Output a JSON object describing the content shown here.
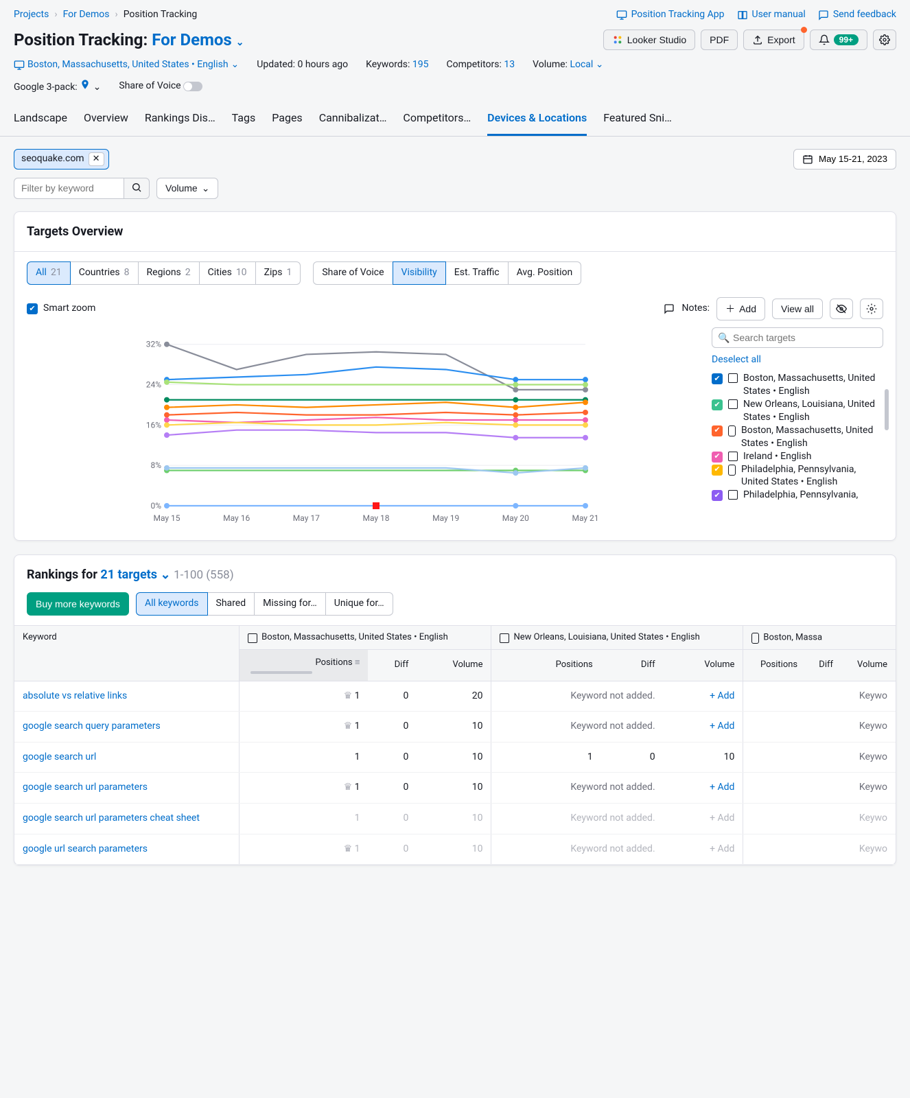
{
  "breadcrumbs": {
    "items": [
      "Projects",
      "For Demos",
      "Position Tracking"
    ]
  },
  "toplinks": {
    "app": "Position Tracking App",
    "manual": "User manual",
    "feedback": "Send feedback"
  },
  "title": {
    "prefix": "Position Tracking:",
    "project": "For Demos"
  },
  "actions": {
    "looker": "Looker Studio",
    "pdf": "PDF",
    "export": "Export",
    "notif_badge": "99+"
  },
  "meta": {
    "location": "Boston, Massachusetts, United States • English",
    "updated_label": "Updated:",
    "updated_val": "0 hours ago",
    "keywords_label": "Keywords:",
    "keywords_val": "195",
    "competitors_label": "Competitors:",
    "competitors_val": "13",
    "volume_label": "Volume:",
    "volume_val": "Local",
    "g3pack": "Google 3-pack:",
    "sov": "Share of Voice"
  },
  "tabs": [
    "Landscape",
    "Overview",
    "Rankings Dis…",
    "Tags",
    "Pages",
    "Cannibalizat…",
    "Competitors…",
    "Devices & Locations",
    "Featured Sni…"
  ],
  "active_tab_index": 7,
  "domain_chip": "seoquake.com",
  "date_range": "May 15-21, 2023",
  "filter": {
    "keyword_placeholder": "Filter by keyword",
    "volume": "Volume"
  },
  "card": {
    "title": "Targets Overview",
    "scopes": [
      {
        "label": "All",
        "count": "21",
        "active": true
      },
      {
        "label": "Countries",
        "count": "8"
      },
      {
        "label": "Regions",
        "count": "2"
      },
      {
        "label": "Cities",
        "count": "10"
      },
      {
        "label": "Zips",
        "count": "1"
      }
    ],
    "metrics": [
      {
        "label": "Share of Voice"
      },
      {
        "label": "Visibility",
        "active": true
      },
      {
        "label": "Est. Traffic"
      },
      {
        "label": "Avg. Position"
      }
    ],
    "smart_zoom": "Smart zoom",
    "notes_label": "Notes:",
    "notes_add": "Add",
    "notes_viewall": "View all",
    "chart": {
      "x_labels": [
        "May 15",
        "May 16",
        "May 17",
        "May 18",
        "May 19",
        "May 20",
        "May 21"
      ],
      "y_labels": [
        "0%",
        "8%",
        "16%",
        "24%",
        "32%"
      ],
      "y_max": 34,
      "series": [
        {
          "color": "#898d9a",
          "values": [
            32,
            27,
            30,
            30.5,
            30,
            23,
            23
          ]
        },
        {
          "color": "#2b8ef0",
          "values": [
            25,
            25.5,
            26,
            27.5,
            27,
            25,
            25
          ]
        },
        {
          "color": "#008a5e",
          "values": [
            21,
            21,
            21,
            21,
            21,
            21,
            21
          ]
        },
        {
          "color": "#ff8a00",
          "values": [
            19.5,
            20,
            19.5,
            20,
            20.5,
            19.5,
            20.5
          ]
        },
        {
          "color": "#a9e27a",
          "values": [
            24.5,
            24,
            24,
            24,
            24,
            24,
            24
          ]
        },
        {
          "color": "#ff642d",
          "values": [
            18,
            18.5,
            18,
            18,
            18.5,
            18,
            18.5
          ]
        },
        {
          "color": "#f05eb1",
          "values": [
            17,
            16.5,
            17,
            17.5,
            17,
            17,
            17
          ]
        },
        {
          "color": "#ffd54a",
          "values": [
            16,
            16.5,
            16,
            16,
            16.5,
            16,
            16
          ]
        },
        {
          "color": "#b57ef5",
          "values": [
            14,
            15,
            15,
            14.5,
            14.5,
            13.5,
            13.5
          ]
        },
        {
          "color": "#6fcf6f",
          "values": [
            7,
            7,
            7,
            7,
            7,
            7,
            7
          ]
        },
        {
          "color": "#9cc7f0",
          "values": [
            7.5,
            7.5,
            7.5,
            7.5,
            7.5,
            6.5,
            7.5
          ]
        },
        {
          "color": "#7db6ff",
          "values": [
            0,
            0,
            0,
            0,
            0,
            0,
            0
          ]
        }
      ],
      "note_marker_x_index": 3,
      "note_marker_color": "#ff1717"
    },
    "legend": {
      "search_placeholder": "Search targets",
      "deselect": "Deselect all",
      "items": [
        {
          "check": "#006dca",
          "device": "desktop",
          "label": "Boston, Massachusetts, United States • English"
        },
        {
          "check": "#3ac28f",
          "device": "desktop",
          "label": "New Orleans, Louisiana, United States • English"
        },
        {
          "check": "#ff642d",
          "device": "mobile",
          "label": "Boston, Massachusetts, United States • English"
        },
        {
          "check": "#f05eb1",
          "device": "desktop",
          "label": "Ireland • English"
        },
        {
          "check": "#ffb800",
          "device": "mobile",
          "label": "Philadelphia, Pennsylvania, United States • English"
        },
        {
          "check": "#8c5cf2",
          "device": "desktop",
          "label": "Philadelphia, Pennsylvania,"
        }
      ]
    }
  },
  "rankings": {
    "prefix": "Rankings for",
    "targets": "21 targets",
    "range": "1-100 (558)",
    "buy": "Buy more keywords",
    "seg": [
      "All keywords",
      "Shared",
      "Missing for…",
      "Unique for…"
    ],
    "headers": {
      "keyword": "Keyword",
      "group1": "Boston, Massachusetts, United States • English",
      "group2": "New Orleans, Louisiana, United States • English",
      "group3": "Boston, Massa",
      "group1_device": "desktop",
      "group2_device": "desktop",
      "group3_device": "mobile",
      "sub": [
        "Positions",
        "Diff",
        "Volume"
      ]
    },
    "not_added": "Keyword not added.",
    "add": "+ Add",
    "keywo": "Keywo",
    "rows": [
      {
        "kw": "absolute vs relative links",
        "p1": "1",
        "crown": true,
        "d1": "0",
        "v1": "20",
        "na2": true
      },
      {
        "kw": "google search query parameters",
        "p1": "1",
        "crown": true,
        "d1": "0",
        "v1": "10",
        "na2": true
      },
      {
        "kw": "google search url",
        "p1": "1",
        "crown": false,
        "d1": "0",
        "v1": "10",
        "p2": "1",
        "d2": "0",
        "v2": "10"
      },
      {
        "kw": "google search url parameters",
        "p1": "1",
        "crown": true,
        "d1": "0",
        "v1": "10",
        "na2": true
      },
      {
        "kw": "google search url parameters cheat sheet",
        "p1": "1",
        "crown": false,
        "d1": "0",
        "v1": "10",
        "na2": true,
        "muted": true
      },
      {
        "kw": "google url search parameters",
        "p1": "1",
        "crown": true,
        "d1": "0",
        "v1": "10",
        "na2": true,
        "muted": true
      }
    ]
  }
}
